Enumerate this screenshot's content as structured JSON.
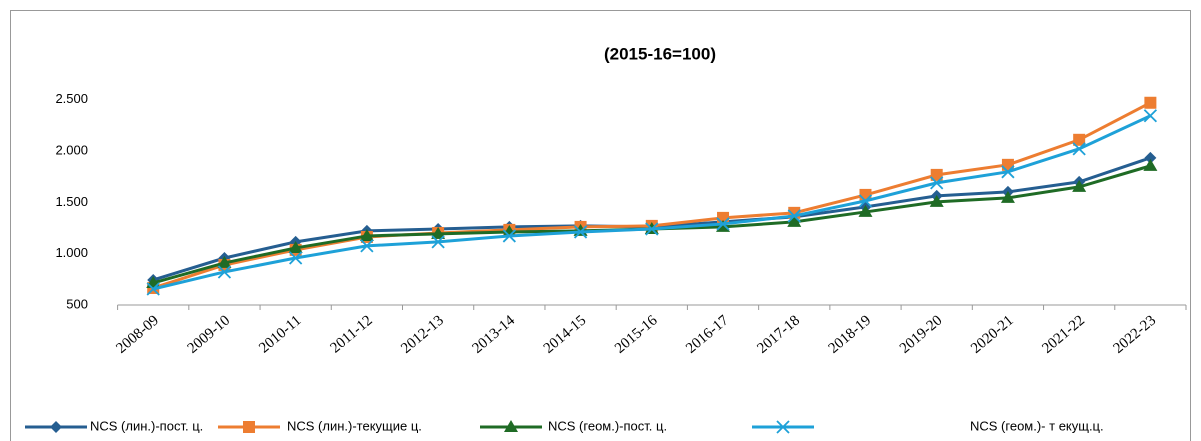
{
  "chart_data": {
    "type": "line",
    "title": "(2015-16=100)",
    "categories": [
      "2008-09",
      "2009-10",
      "2010-11",
      "2011-12",
      "2012-13",
      "2013-14",
      "2014-15",
      "2015-16",
      "2016-17",
      "2017-18",
      "2018-19",
      "2019-20",
      "2020-21",
      "2021-22",
      "2022-23"
    ],
    "series": [
      {
        "name": "NCS (лин.)-пост. ц.",
        "color": "#255e91",
        "marker": "diamond",
        "values": [
          744,
          958,
          1115,
          1222,
          1241,
          1261,
          1271,
          1261,
          1310,
          1359,
          1456,
          1563,
          1602,
          1700,
          1934
        ]
      },
      {
        "name": "NCS (лин.)-текущие ц.",
        "color": "#ed7d31",
        "marker": "square",
        "values": [
          666,
          890,
          1037,
          1163,
          1202,
          1232,
          1261,
          1271,
          1349,
          1398,
          1573,
          1768,
          1866,
          2110,
          2471
        ]
      },
      {
        "name": "NCS (геом.)-пост. ц.",
        "color": "#1f6b25",
        "marker": "triangle",
        "values": [
          715,
          910,
          1056,
          1173,
          1193,
          1212,
          1222,
          1241,
          1261,
          1310,
          1407,
          1505,
          1544,
          1651,
          1856
        ]
      },
      {
        "name": "NCS (геом.)- т екущ.ц.",
        "color": "#1ea1d8",
        "marker": "x",
        "values": [
          656,
          822,
          958,
          1076,
          1115,
          1173,
          1212,
          1241,
          1290,
          1368,
          1515,
          1690,
          1798,
          2022,
          2344
        ]
      }
    ],
    "ylim": [
      500,
      2800
    ],
    "yticks": [
      500,
      {
        "value": 1000,
        "label": "1.000"
      },
      {
        "value": 1500,
        "label": "1.500"
      },
      {
        "value": 2000,
        "label": "2.000"
      },
      {
        "value": 2500,
        "label": "2.500"
      }
    ],
    "grid": false,
    "legend": "bottom"
  }
}
